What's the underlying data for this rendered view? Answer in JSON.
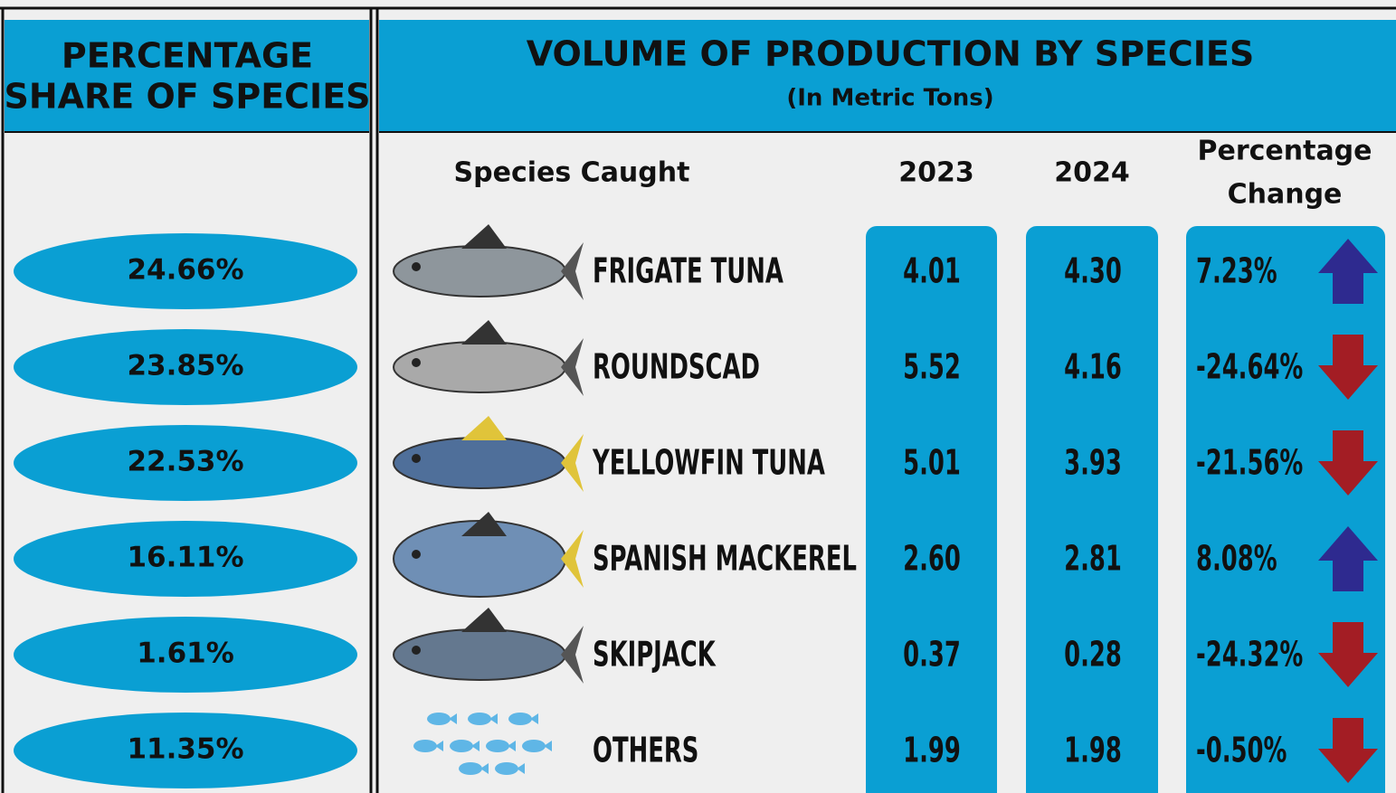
{
  "left": {
    "title_line1": "PERCENTAGE",
    "title_line2": "SHARE OF SPECIES",
    "shares": [
      "24.66%",
      "23.85%",
      "22.53%",
      "16.11%",
      "1.61%",
      "11.35%"
    ]
  },
  "right": {
    "title": "VOLUME  OF PRODUCTION BY SPECIES",
    "subtitle": "(In Metric Tons)",
    "headers": {
      "species": "Species Caught",
      "y2023": "2023",
      "y2024": "2024",
      "change_line1": "Percentage",
      "change_line2": "Change"
    },
    "rows": [
      {
        "species": "FRIGATE TUNA",
        "y2023": "4.01",
        "y2024": "4.30",
        "change": "7.23%"
      },
      {
        "species": "ROUNDSCAD",
        "y2023": "5.52",
        "y2024": "4.16",
        "change": "-24.64%"
      },
      {
        "species": "YELLOWFIN TUNA",
        "y2023": "5.01",
        "y2024": "3.93",
        "change": "-21.56%"
      },
      {
        "species": "SPANISH MACKEREL",
        "y2023": "2.60",
        "y2024": "2.81",
        "change": "8.08%"
      },
      {
        "species": "SKIPJACK",
        "y2023": "0.37",
        "y2024": "0.28",
        "change": "-24.32%"
      },
      {
        "species": "OTHERS",
        "y2023": "1.99",
        "y2024": "1.98",
        "change": "-0.50%"
      }
    ]
  }
}
